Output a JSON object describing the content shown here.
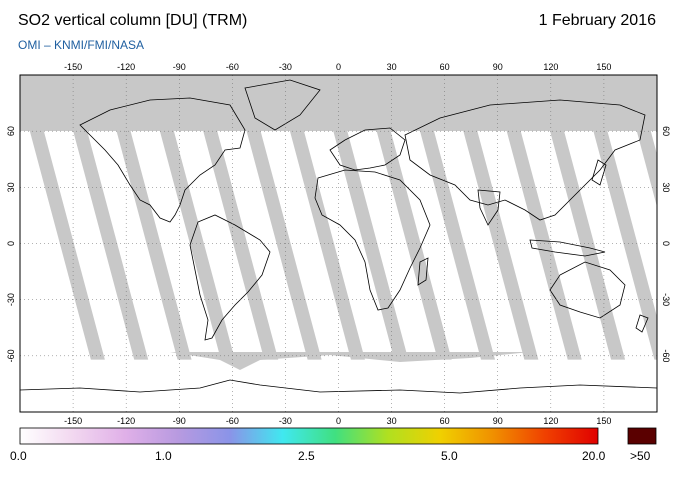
{
  "header": {
    "title": "SO2 vertical column [DU] (TRM)",
    "date": "1 February 2016",
    "source": "OMI  –  KNMI/FMI/NASA"
  },
  "map": {
    "projection": "equirectangular",
    "lon_range": [
      -180,
      180
    ],
    "lat_range": [
      -90,
      90
    ],
    "lon_ticks": [
      -150,
      -120,
      -90,
      -60,
      -30,
      0,
      30,
      60,
      90,
      120,
      150
    ],
    "lon_tick_labels": [
      "-150",
      "-120",
      "-90",
      "-60",
      "-30",
      "0",
      "30",
      "60",
      "90",
      "120",
      "150"
    ],
    "lat_ticks": [
      60,
      30,
      0,
      -30,
      -60
    ],
    "lat_tick_labels": [
      "60",
      "30",
      "0",
      "-30",
      "-60"
    ],
    "grid": true,
    "colors": {
      "ocean": "#ffffff",
      "no_data": "#c8c8c8",
      "land_gap": "#a0a0a0",
      "coast": "#000000"
    }
  },
  "colorbar": {
    "labels": [
      "0.0",
      "1.0",
      "2.5",
      "5.0",
      "20.0"
    ],
    "overflow_label": ">50",
    "overflow_color": "#5a0000",
    "stops": [
      "#ffffff",
      "#f2d8f0",
      "#e0b0e8",
      "#b89ae0",
      "#8a94e8",
      "#40e8f0",
      "#40e080",
      "#b0e020",
      "#f0d000",
      "#f09000",
      "#f04000",
      "#e00000"
    ]
  }
}
